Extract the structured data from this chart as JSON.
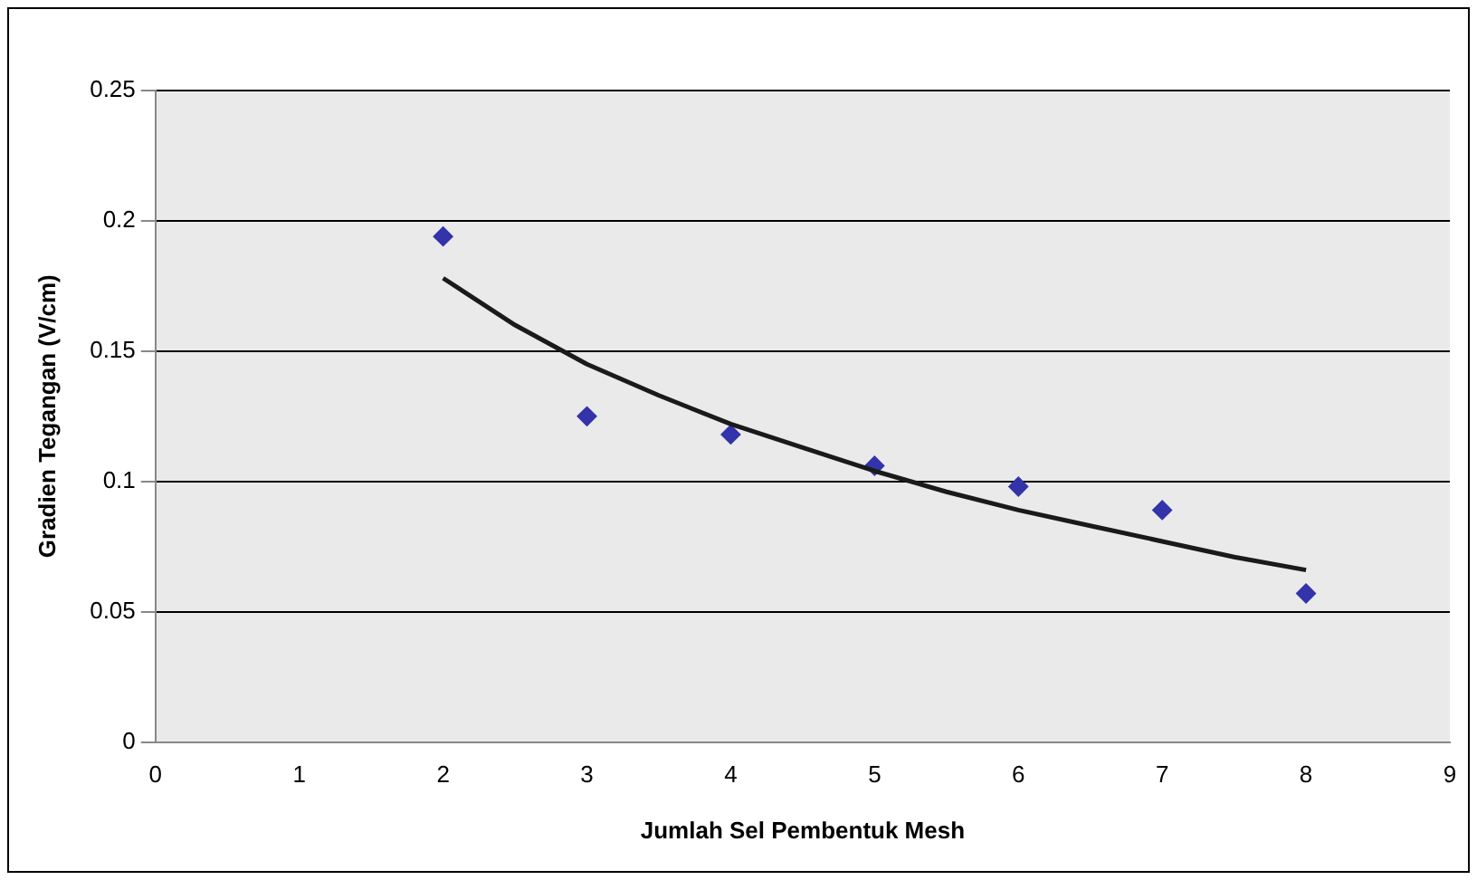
{
  "chart_data": {
    "type": "scatter",
    "xlabel": "Jumlah Sel Pembentuk Mesh",
    "ylabel": "Gradien Tegangan (V/cm)",
    "xlim": [
      0,
      9
    ],
    "xticks": [
      0,
      1,
      2,
      3,
      4,
      5,
      6,
      7,
      8,
      9
    ],
    "ylim": [
      0,
      0.25
    ],
    "yticks": [
      0,
      0.05,
      0.1,
      0.15,
      0.2,
      0.25
    ],
    "grid": "y",
    "legend": false,
    "marker": "diamond",
    "series": [
      {
        "type": "scatter",
        "color": "#3333aa",
        "x": [
          2,
          3,
          4,
          5,
          6,
          7,
          8
        ],
        "values": [
          0.194,
          0.125,
          0.118,
          0.106,
          0.098,
          0.089,
          0.057
        ]
      },
      {
        "type": "line",
        "color": "#1a1a1a",
        "marker": "none",
        "line_style": "solid",
        "x": [
          2,
          2.5,
          3,
          3.5,
          4,
          4.5,
          5,
          5.5,
          6,
          6.5,
          7,
          7.5,
          8
        ],
        "values": [
          0.178,
          0.16,
          0.145,
          0.133,
          0.122,
          0.113,
          0.104,
          0.096,
          0.089,
          0.083,
          0.077,
          0.071,
          0.066
        ]
      }
    ]
  }
}
